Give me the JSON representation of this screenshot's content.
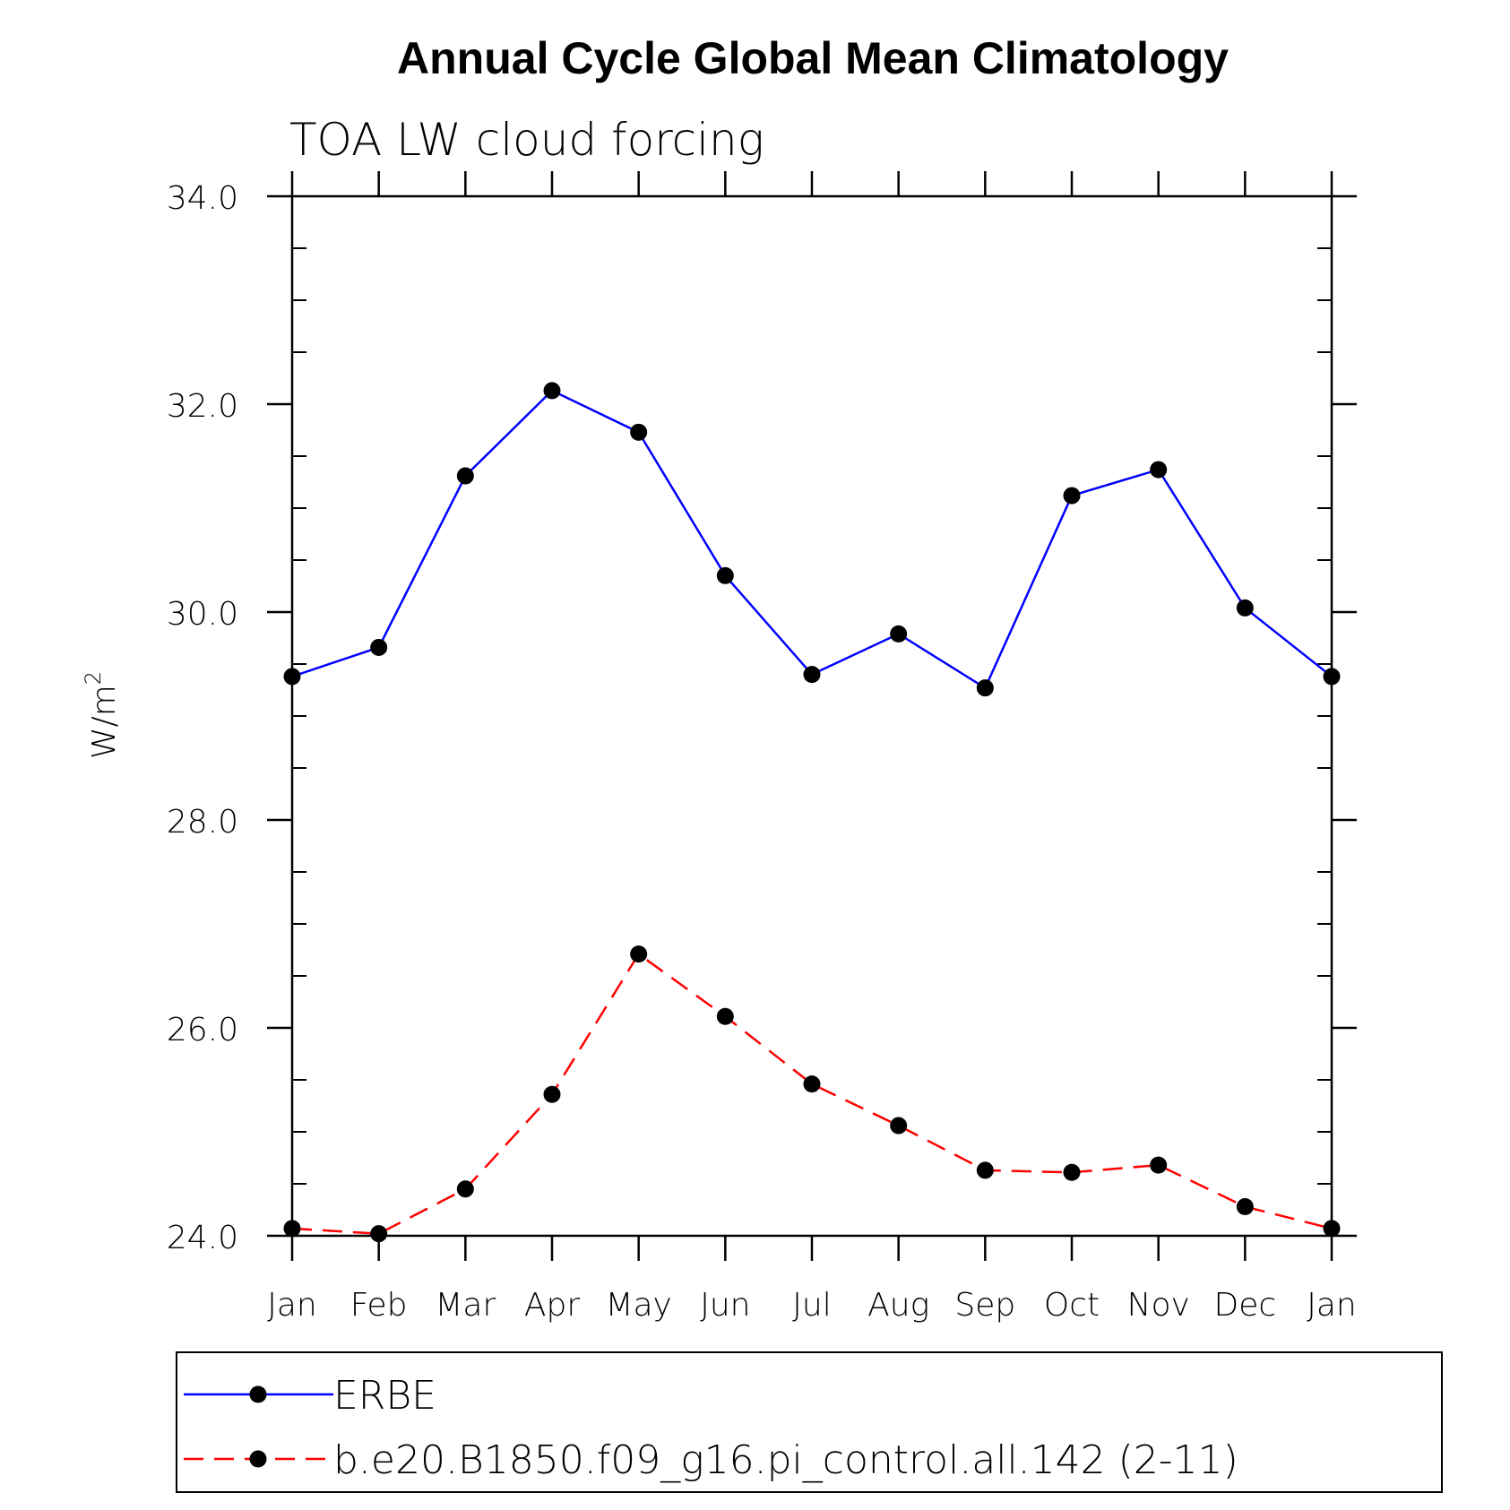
{
  "chart_data": {
    "type": "line",
    "title": "Annual Cycle Global Mean Climatology",
    "subtitle": "TOA LW cloud forcing",
    "xlabel": "",
    "ylabel": "W/m",
    "ylabel_superscript": "2",
    "categories": [
      "Jan",
      "Feb",
      "Mar",
      "Apr",
      "May",
      "Jun",
      "Jul",
      "Aug",
      "Sep",
      "Oct",
      "Nov",
      "Dec",
      "Jan"
    ],
    "ylim": [
      24.0,
      34.0
    ],
    "yticks": [
      "24.0",
      "26.0",
      "28.0",
      "30.0",
      "32.0",
      "34.0"
    ],
    "ytick_values": [
      24,
      26,
      28,
      30,
      32,
      34
    ],
    "y_minor_step": 0.5,
    "grid": false,
    "legend_position": "bottom",
    "series": [
      {
        "name": "ERBE",
        "color": "#0000ff",
        "dash": "solid",
        "marker": "filled-circle",
        "values": [
          29.38,
          29.66,
          31.31,
          32.13,
          31.73,
          30.35,
          29.4,
          29.79,
          29.27,
          31.12,
          31.37,
          30.04,
          29.38
        ]
      },
      {
        "name": "b.e20.B1850.f09_g16.pi_control.all.142 (2-11)",
        "color": "#ff0000",
        "dash": "dashed",
        "marker": "filled-circle",
        "values": [
          24.07,
          24.02,
          24.45,
          25.36,
          26.71,
          26.11,
          25.46,
          25.06,
          24.63,
          24.61,
          24.68,
          24.28,
          24.07
        ]
      }
    ]
  }
}
